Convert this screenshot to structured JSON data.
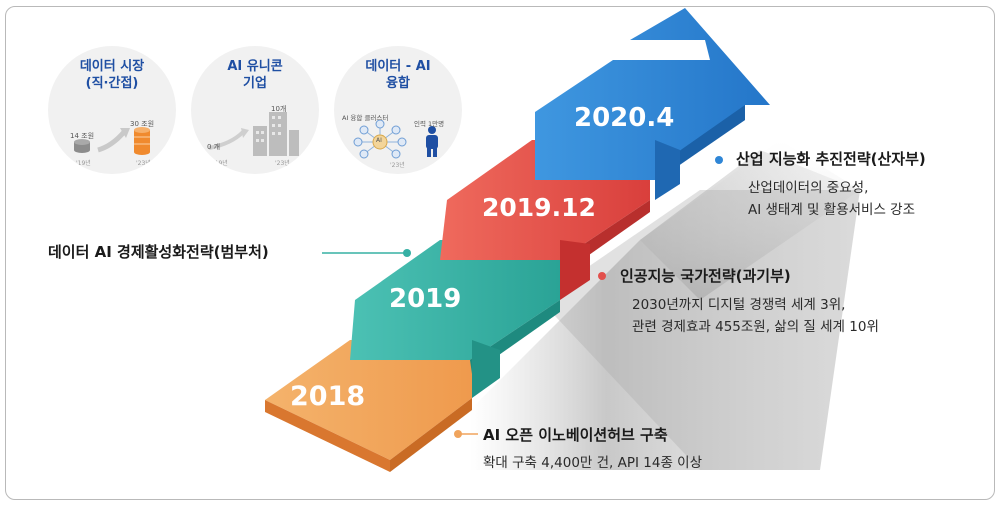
{
  "circles": [
    {
      "title_line1": "데이터 시장",
      "title_line2": "(직·간접)",
      "left_value": "14 조원",
      "right_value": "30 조원",
      "left_year": "'19년",
      "right_year": "'23년"
    },
    {
      "title_line1": "AI 유니콘",
      "title_line2": "기업",
      "left_value": "0 개",
      "right_value": "10개",
      "left_year": "'19년",
      "right_year": "'23년"
    },
    {
      "title_line1": "데이터 - AI",
      "title_line2": "융합",
      "left_value": "AI 융합 클러스터",
      "right_value": "인력 1만명",
      "hub_label": "AI",
      "right_year": "'23년"
    }
  ],
  "steps": [
    {
      "year": "2018",
      "color": "#f0a45d"
    },
    {
      "year": "2019",
      "color": "#36b0a4"
    },
    {
      "year": "2019.12",
      "color": "#e2504c"
    },
    {
      "year": "2020.4",
      "color": "#2f86d6"
    }
  ],
  "annotations": {
    "ministry_science": {
      "title": "데이터 AI 경제활성화전략(범부처)",
      "color": "#36b0a4"
    },
    "industry": {
      "title": "산업 지능화 추진전략(산자부)",
      "desc1": "산업데이터의 중요성,",
      "desc2": "AI 생태계 및 활용서비스 강조",
      "color": "#2f86d6"
    },
    "national": {
      "title": "인공지능 국가전략(과기부)",
      "desc1": "2030년까지 디지털 경쟁력 세계 3위,",
      "desc2": "관련 경제효과 455조원, 삶의 질 세계 10위",
      "color": "#e2504c"
    },
    "hub": {
      "title": "AI 오픈 이노베이션허브 구축",
      "desc1": "확대 구축 4,400만 건, API 14종 이상",
      "color": "#f0a45d"
    }
  }
}
